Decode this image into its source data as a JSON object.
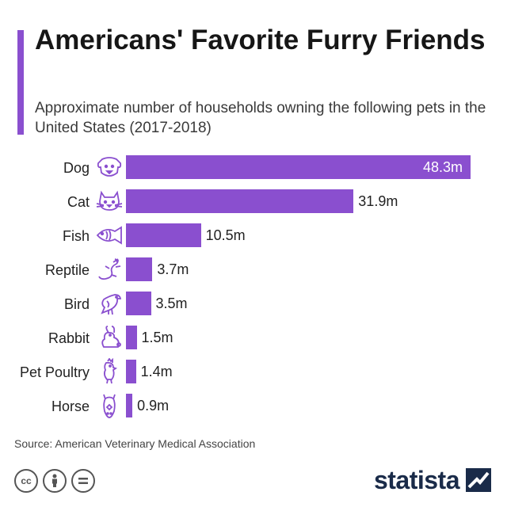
{
  "title": "Americans' Favorite Furry Friends",
  "subtitle": "Approximate number of households owning the following pets in the United States (2017-2018)",
  "source": "Source: American Veterinary Medical Association",
  "brand": "statista",
  "colors": {
    "bar": "#8a4fcf",
    "accent": "#8a4fcf",
    "brand": "#1a2b49"
  },
  "license_icons": [
    "creative-commons-icon",
    "attribution-icon",
    "no-derivatives-icon"
  ],
  "chart_data": {
    "type": "bar",
    "orientation": "horizontal",
    "categories": [
      "Dog",
      "Cat",
      "Fish",
      "Reptile",
      "Bird",
      "Rabbit",
      "Pet Poultry",
      "Horse"
    ],
    "values": [
      48.3,
      31.9,
      10.5,
      3.7,
      3.5,
      1.5,
      1.4,
      0.9
    ],
    "value_labels": [
      "48.3m",
      "31.9m",
      "10.5m",
      "3.7m",
      "3.5m",
      "1.5m",
      "1.4m",
      "0.9m"
    ],
    "icons": [
      "dog-icon",
      "cat-icon",
      "fish-icon",
      "reptile-icon",
      "bird-icon",
      "rabbit-icon",
      "poultry-icon",
      "horse-icon"
    ],
    "unit": "million households",
    "title": "Americans' Favorite Furry Friends",
    "xlabel": "",
    "ylabel": "",
    "grid": false,
    "legend": "none"
  }
}
